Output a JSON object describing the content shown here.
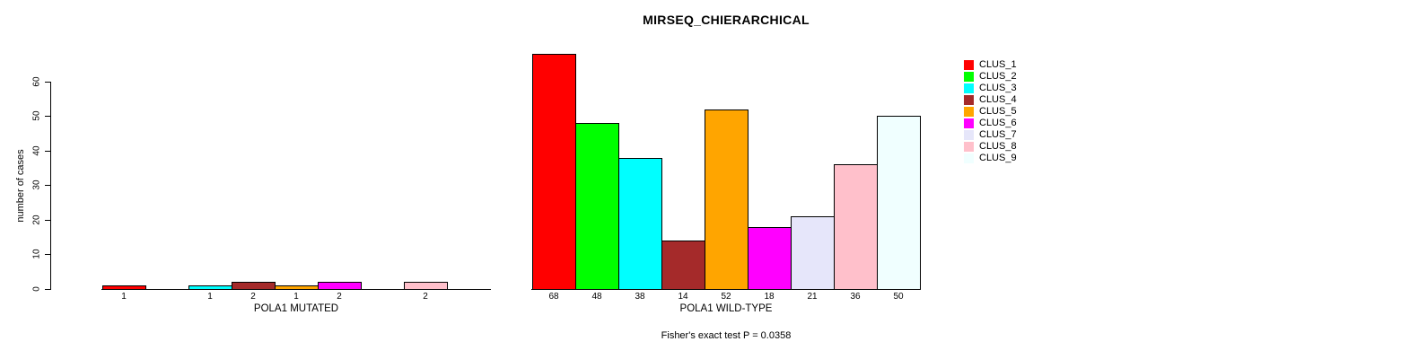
{
  "chart_data": {
    "type": "bar",
    "title": "MIRSEQ_CHIERARCHICAL",
    "ylabel": "number of cases",
    "ylim": [
      0,
      60
    ],
    "yticks": [
      0,
      10,
      20,
      30,
      40,
      50,
      60
    ],
    "grid": false,
    "legend_position": "right",
    "series_labels": [
      "CLUS_1",
      "CLUS_2",
      "CLUS_3",
      "CLUS_4",
      "CLUS_5",
      "CLUS_6",
      "CLUS_7",
      "CLUS_8",
      "CLUS_9"
    ],
    "series_colors": [
      "#ff0000",
      "#00ff00",
      "#00ffff",
      "#a52a2a",
      "#ffa500",
      "#ff00ff",
      "#e6e6fa",
      "#ffc0cb",
      "#f0ffff"
    ],
    "panels": [
      {
        "xlabel": "POLA1 MUTATED",
        "values": [
          1,
          0,
          1,
          2,
          1,
          2,
          0,
          2,
          0
        ],
        "bar_labels": [
          "1",
          "",
          "1",
          "2",
          "1",
          "2",
          "",
          "2",
          ""
        ]
      },
      {
        "xlabel": "POLA1 WILD-TYPE",
        "values": [
          68,
          48,
          38,
          14,
          52,
          18,
          21,
          36,
          50
        ],
        "bar_labels": [
          "68",
          "48",
          "38",
          "14",
          "52",
          "18",
          "21",
          "36",
          "50"
        ]
      }
    ],
    "footnote": "Fisher's exact test P = 0.0358"
  }
}
